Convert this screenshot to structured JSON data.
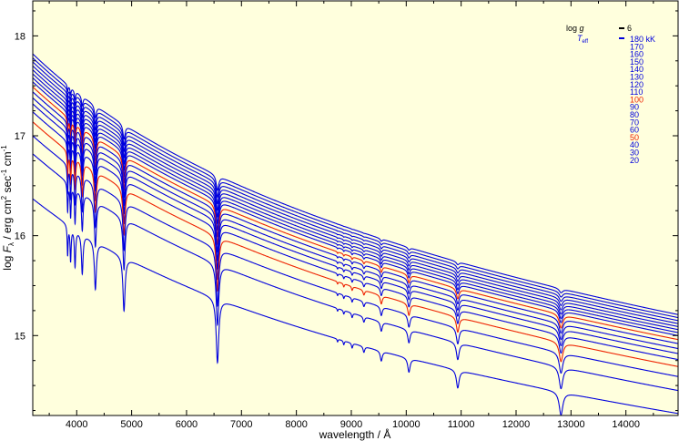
{
  "chart_data": {
    "type": "line",
    "title": "",
    "xlabel": "wavelength / Å",
    "ylabel_parts": {
      "pre": "log ",
      "F": "F",
      "lambda_sub": "λ",
      "mid": " / erg cm",
      "sup2": "2",
      "mid2": " sec",
      "sup_m1": "-1",
      "mid3": " cm",
      "sup_m1b": "-1"
    },
    "xlim": [
      3200,
      14950
    ],
    "ylim": [
      14.2,
      18.35
    ],
    "x_ticks": [
      "4000",
      "5000",
      "6000",
      "7000",
      "8000",
      "9000",
      "10000",
      "11000",
      "12000",
      "13000",
      "14000"
    ],
    "x_tick_values": [
      4000,
      5000,
      6000,
      7000,
      8000,
      9000,
      10000,
      11000,
      12000,
      13000,
      14000
    ],
    "y_ticks": [
      "15",
      "16",
      "17",
      "18"
    ],
    "y_tick_values": [
      15,
      16,
      17,
      18
    ],
    "grid": false,
    "legend_position": "top-right",
    "legend": {
      "logg_label": "log g",
      "logg_value": "6",
      "teff_label": "T",
      "teff_sub": "eff",
      "entries": [
        "180 kK",
        "170",
        "160",
        "150",
        "140",
        "130",
        "120",
        "110",
        "100",
        "90",
        "80",
        "70",
        "60",
        "50",
        "40",
        "30",
        "20"
      ],
      "highlighted": [
        "100",
        "50"
      ]
    },
    "colors": {
      "series": "#0000dd",
      "highlight": "#ee2200",
      "background": "#ffffdd"
    },
    "series": [
      {
        "teff_kK": 180,
        "y_at_3200": 17.82,
        "y_at_14950": 15.21
      },
      {
        "teff_kK": 170,
        "y_at_3200": 17.78,
        "y_at_14950": 15.18
      },
      {
        "teff_kK": 160,
        "y_at_3200": 17.74,
        "y_at_14950": 15.15
      },
      {
        "teff_kK": 150,
        "y_at_3200": 17.7,
        "y_at_14950": 15.12
      },
      {
        "teff_kK": 140,
        "y_at_3200": 17.66,
        "y_at_14950": 15.09
      },
      {
        "teff_kK": 130,
        "y_at_3200": 17.62,
        "y_at_14950": 15.06
      },
      {
        "teff_kK": 120,
        "y_at_3200": 17.58,
        "y_at_14950": 15.03
      },
      {
        "teff_kK": 110,
        "y_at_3200": 17.54,
        "y_at_14950": 15.0
      },
      {
        "teff_kK": 100,
        "y_at_3200": 17.49,
        "y_at_14950": 14.96
      },
      {
        "teff_kK": 90,
        "y_at_3200": 17.44,
        "y_at_14950": 14.92
      },
      {
        "teff_kK": 80,
        "y_at_3200": 17.38,
        "y_at_14950": 14.87
      },
      {
        "teff_kK": 70,
        "y_at_3200": 17.32,
        "y_at_14950": 14.82
      },
      {
        "teff_kK": 60,
        "y_at_3200": 17.24,
        "y_at_14950": 14.76
      },
      {
        "teff_kK": 50,
        "y_at_3200": 17.14,
        "y_at_14950": 14.69
      },
      {
        "teff_kK": 40,
        "y_at_3200": 17.0,
        "y_at_14950": 14.59
      },
      {
        "teff_kK": 30,
        "y_at_3200": 16.82,
        "y_at_14950": 14.45
      },
      {
        "teff_kK": 20,
        "y_at_3200": 16.37,
        "y_at_14950": 14.22
      }
    ],
    "absorption_lines_A": [
      3835,
      3889,
      3970,
      4101,
      4340,
      4861,
      6563,
      8750,
      8863,
      9015,
      9229,
      9546,
      10049,
      10938,
      12818
    ]
  }
}
